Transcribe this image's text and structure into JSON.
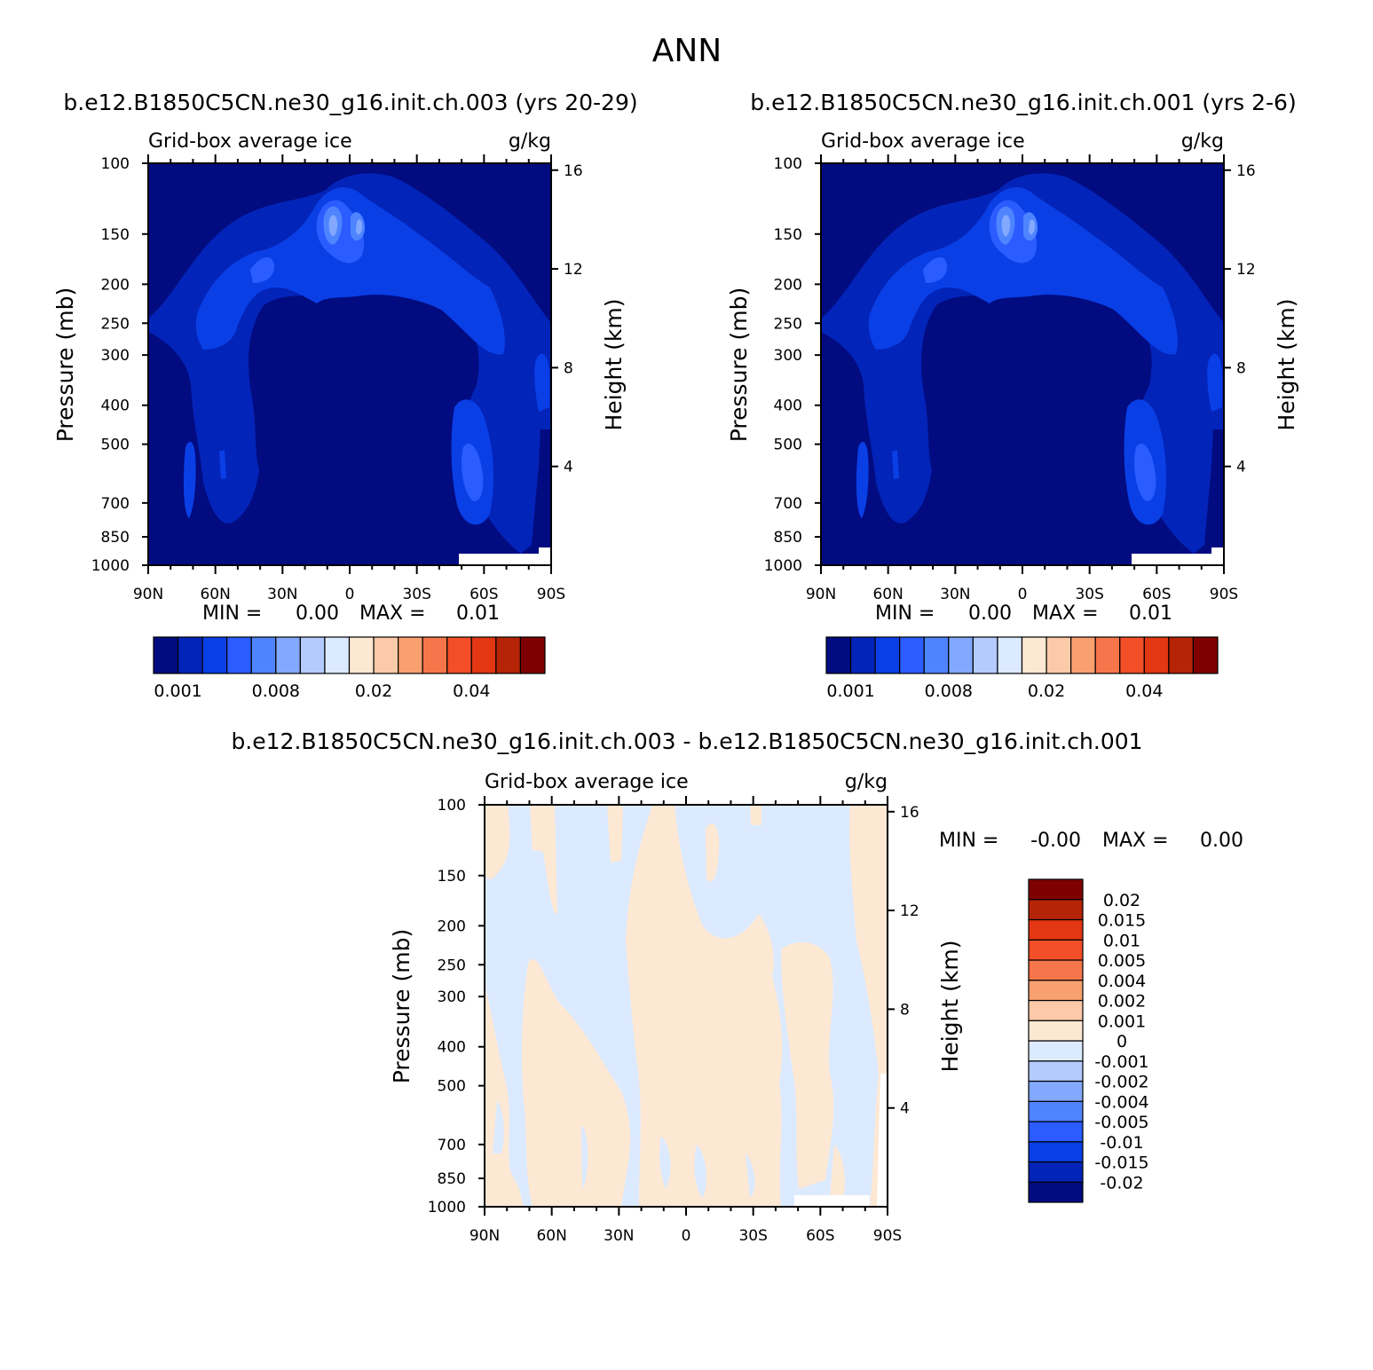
{
  "main_title": "ANN",
  "chart_data": [
    {
      "type": "heatmap",
      "id": "case",
      "title": "b.e12.B1850C5CN.ne30_g16.init.ch.003 (yrs 20-29)",
      "variable": "Grid-box average ice",
      "units": "g/kg",
      "ylabel": "Pressure (mb)",
      "ylabel_right": "Height (km)",
      "pressure_ticks": [
        "100",
        "150",
        "200",
        "250",
        "300",
        "400",
        "500",
        "700",
        "850",
        "1000"
      ],
      "pressure_values": [
        100,
        150,
        200,
        250,
        300,
        400,
        500,
        700,
        850,
        1000
      ],
      "height_ticks": [
        "16",
        "12",
        "8",
        "4"
      ],
      "height_values": [
        16,
        12,
        8,
        4
      ],
      "x_ticks": [
        "90N",
        "60N",
        "30N",
        "0",
        "30S",
        "60S",
        "90S"
      ],
      "x_values": [
        90,
        60,
        30,
        0,
        -30,
        -60,
        -90
      ],
      "stats": {
        "min_label": "MIN =",
        "min": "0.00",
        "max_label": "MAX =",
        "max": "0.01"
      },
      "colorbar": {
        "colors": [
          "#020b80",
          "#0324b8",
          "#0a3fe6",
          "#2a5cff",
          "#4f84ff",
          "#82a9ff",
          "#b3cbff",
          "#dceaff",
          "#fde8d4",
          "#fccaa8",
          "#f9a070",
          "#f6754a",
          "#f24e27",
          "#e33613",
          "#b52406",
          "#7f0000"
        ],
        "tick_labels": [
          "0.001",
          "0.008",
          "0.02",
          "0.04"
        ],
        "tick_index": [
          0,
          4,
          8,
          12
        ]
      }
    },
    {
      "type": "heatmap",
      "id": "control",
      "title": "b.e12.B1850C5CN.ne30_g16.init.ch.001 (yrs 2-6)",
      "variable": "Grid-box average ice",
      "units": "g/kg",
      "ylabel": "Pressure (mb)",
      "ylabel_right": "Height (km)",
      "pressure_ticks": [
        "100",
        "150",
        "200",
        "250",
        "300",
        "400",
        "500",
        "700",
        "850",
        "1000"
      ],
      "pressure_values": [
        100,
        150,
        200,
        250,
        300,
        400,
        500,
        700,
        850,
        1000
      ],
      "height_ticks": [
        "16",
        "12",
        "8",
        "4"
      ],
      "height_values": [
        16,
        12,
        8,
        4
      ],
      "x_ticks": [
        "90N",
        "60N",
        "30N",
        "0",
        "30S",
        "60S",
        "90S"
      ],
      "x_values": [
        90,
        60,
        30,
        0,
        -30,
        -60,
        -90
      ],
      "stats": {
        "min_label": "MIN =",
        "min": "0.00",
        "max_label": "MAX =",
        "max": "0.01"
      },
      "colorbar": {
        "colors": [
          "#020b80",
          "#0324b8",
          "#0a3fe6",
          "#2a5cff",
          "#4f84ff",
          "#82a9ff",
          "#b3cbff",
          "#dceaff",
          "#fde8d4",
          "#fccaa8",
          "#f9a070",
          "#f6754a",
          "#f24e27",
          "#e33613",
          "#b52406",
          "#7f0000"
        ],
        "tick_labels": [
          "0.001",
          "0.008",
          "0.02",
          "0.04"
        ],
        "tick_index": [
          0,
          4,
          8,
          12
        ]
      }
    },
    {
      "type": "heatmap",
      "id": "difference",
      "title": "b.e12.B1850C5CN.ne30_g16.init.ch.003 - b.e12.B1850C5CN.ne30_g16.init.ch.001",
      "variable": "Grid-box average ice",
      "units": "g/kg",
      "ylabel": "Pressure (mb)",
      "ylabel_right": "Height (km)",
      "pressure_ticks": [
        "100",
        "150",
        "200",
        "250",
        "300",
        "400",
        "500",
        "700",
        "850",
        "1000"
      ],
      "pressure_values": [
        100,
        150,
        200,
        250,
        300,
        400,
        500,
        700,
        850,
        1000
      ],
      "height_ticks": [
        "16",
        "12",
        "8",
        "4"
      ],
      "height_values": [
        16,
        12,
        8,
        4
      ],
      "x_ticks": [
        "90N",
        "60N",
        "30N",
        "0",
        "30S",
        "60S",
        "90S"
      ],
      "x_values": [
        90,
        60,
        30,
        0,
        -30,
        -60,
        -90
      ],
      "stats": {
        "min_label": "MIN =",
        "min": "-0.00",
        "max_label": "MAX =",
        "max": "0.00"
      },
      "colorbar": {
        "colors": [
          "#020b80",
          "#0324b8",
          "#0a3fe6",
          "#2a5cff",
          "#4f84ff",
          "#82a9ff",
          "#b3cbff",
          "#dceaff",
          "#fde8d4",
          "#fccaa8",
          "#f9a070",
          "#f6754a",
          "#f24e27",
          "#e33613",
          "#b52406",
          "#7f0000"
        ],
        "tick_labels": [
          "-0.02",
          "-0.015",
          "-0.01",
          "-0.005",
          "-0.004",
          "-0.002",
          "-0.001",
          "0",
          "0.001",
          "0.002",
          "0.004",
          "0.005",
          "0.01",
          "0.015",
          "0.02"
        ]
      }
    }
  ]
}
